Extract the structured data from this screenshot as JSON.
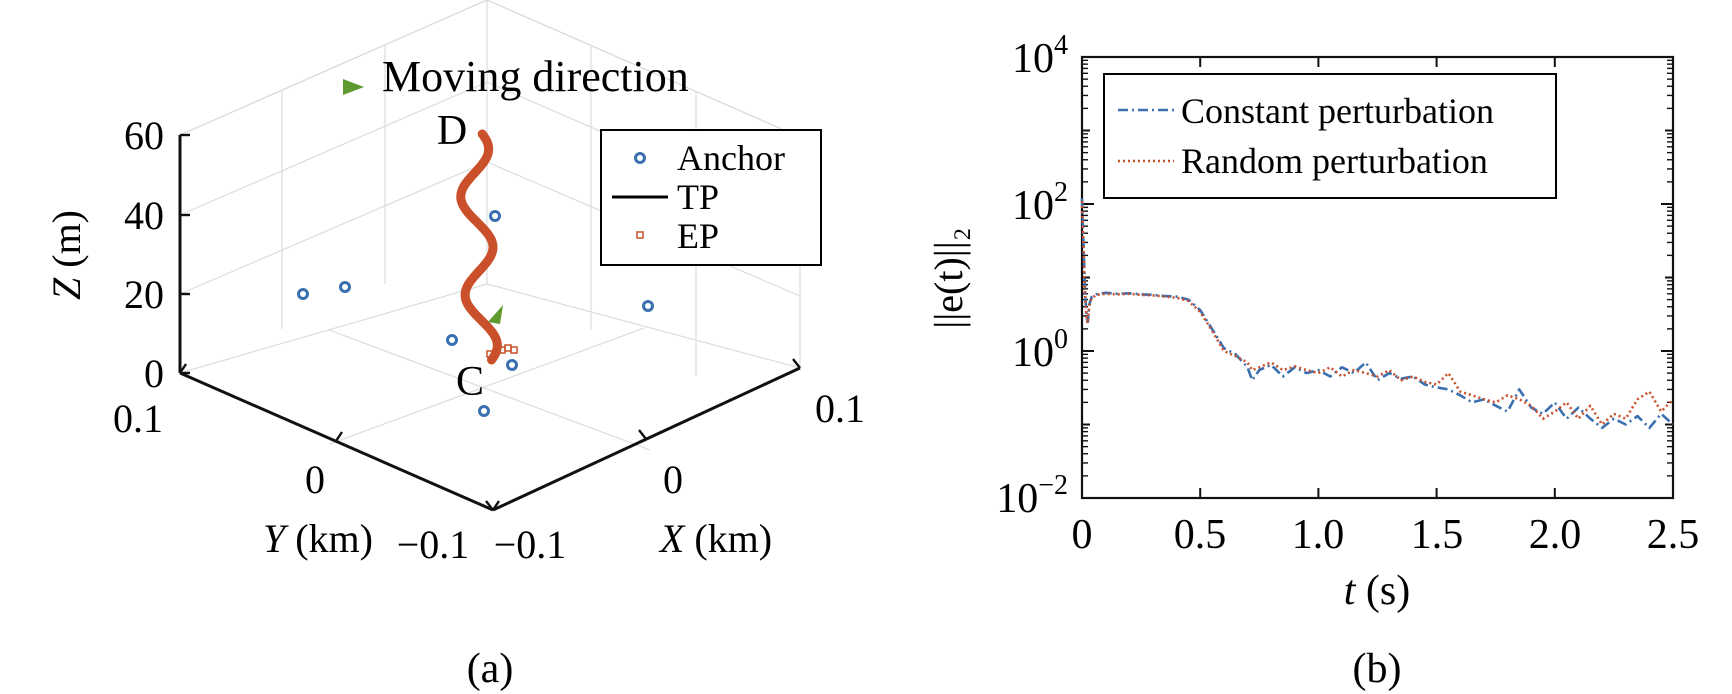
{
  "chart_data": [
    {
      "panel": "(a)",
      "type": "scatter",
      "view": "3d",
      "xlabel": {
        "var": "X",
        "unit": "(km)"
      },
      "ylabel": {
        "var": "Y",
        "unit": "(km)"
      },
      "zlabel": {
        "var": "Z",
        "unit": "(m)"
      },
      "x_ticks": [
        "−0.1",
        "0",
        "0.1"
      ],
      "y_ticks": [
        "0.1",
        "0",
        "−0.1"
      ],
      "z_ticks": [
        "0",
        "20",
        "40",
        "60"
      ],
      "xlim": [
        -0.1,
        0.1
      ],
      "ylim": [
        -0.1,
        0.1
      ],
      "zlim": [
        0,
        60
      ],
      "grid": true,
      "annotations": {
        "moving_direction": "Moving direction",
        "start_label": "C",
        "end_label": "D"
      },
      "legend": {
        "position": "top-right",
        "entries": [
          {
            "label": "Anchor",
            "marker": "circle",
            "color": "#3a6fb0"
          },
          {
            "label": "TP",
            "marker": "line",
            "color": "#000000"
          },
          {
            "label": "EP",
            "marker": "square",
            "color": "#c9502a"
          }
        ]
      },
      "anchors": [
        {
          "x": -0.08,
          "y": 0.03,
          "z": 0
        },
        {
          "x": -0.07,
          "y": 0.0,
          "z": 5
        },
        {
          "x": 0.01,
          "y": 0.05,
          "z": 40
        },
        {
          "x": 0.08,
          "y": -0.06,
          "z": 18
        },
        {
          "x": 0.0,
          "y": 0.02,
          "z": 0
        },
        {
          "x": 0.03,
          "y": -0.02,
          "z": 0
        },
        {
          "x": 0.02,
          "y": 0.05,
          "z": -10
        }
      ],
      "trajectory": {
        "start": {
          "x": 0,
          "y": 0,
          "z": 0
        },
        "end": {
          "x": 0,
          "y": 0,
          "z": 60
        },
        "amplitude_km": 0.006,
        "turns": 2.3
      },
      "trajectory_color": "#c9502a",
      "arrow_color": "#5e9a2d"
    },
    {
      "panel": "(b)",
      "type": "line",
      "xlabel": {
        "var": "t",
        "unit": "(s)"
      },
      "ylabel": "||e(t)||₂",
      "yscale": "log",
      "xlim": [
        0,
        2.5
      ],
      "ylim": [
        0.01,
        10000
      ],
      "x_ticks": [
        "0",
        "0.5",
        "1.0",
        "1.5",
        "2.0",
        "2.5"
      ],
      "y_ticks": [
        {
          "base": "10",
          "exp": "−2"
        },
        {
          "base": "10",
          "exp": "0"
        },
        {
          "base": "10",
          "exp": "2"
        },
        {
          "base": "10",
          "exp": "4"
        }
      ],
      "legend_position": "top-left",
      "series": [
        {
          "name": "Constant perturbation",
          "color": "#3a6fb0",
          "dash": "dashdot",
          "x": [
            0,
            0.005,
            0.01,
            0.015,
            0.02,
            0.025,
            0.03,
            0.04,
            0.06,
            0.1,
            0.15,
            0.2,
            0.25,
            0.3,
            0.35,
            0.4,
            0.45,
            0.5,
            0.55,
            0.6,
            0.65,
            0.7,
            0.72,
            0.75,
            0.8,
            0.85,
            0.9,
            0.95,
            1.0,
            1.05,
            1.1,
            1.15,
            1.2,
            1.25,
            1.3,
            1.35,
            1.4,
            1.45,
            1.5,
            1.55,
            1.6,
            1.65,
            1.7,
            1.75,
            1.8,
            1.85,
            1.9,
            1.95,
            2.0,
            2.05,
            2.1,
            2.15,
            2.2,
            2.25,
            2.3,
            2.35,
            2.4,
            2.45,
            2.5
          ],
          "y": [
            120,
            40,
            12,
            5,
            2.8,
            2.5,
            4.2,
            5.4,
            5.9,
            6.2,
            6.0,
            6.1,
            5.9,
            5.8,
            5.6,
            5.5,
            5.0,
            3.6,
            2.0,
            1.1,
            0.9,
            0.6,
            0.4,
            0.55,
            0.65,
            0.45,
            0.6,
            0.5,
            0.55,
            0.45,
            0.6,
            0.5,
            0.7,
            0.4,
            0.5,
            0.42,
            0.45,
            0.35,
            0.32,
            0.3,
            0.25,
            0.2,
            0.22,
            0.18,
            0.15,
            0.3,
            0.17,
            0.14,
            0.2,
            0.12,
            0.17,
            0.12,
            0.09,
            0.12,
            0.1,
            0.13,
            0.09,
            0.14,
            0.1
          ]
        },
        {
          "name": "Random perturbation",
          "color": "#c9502a",
          "dash": "dotted",
          "x": [
            0,
            0.005,
            0.01,
            0.015,
            0.02,
            0.025,
            0.03,
            0.04,
            0.06,
            0.1,
            0.15,
            0.2,
            0.25,
            0.3,
            0.35,
            0.4,
            0.45,
            0.5,
            0.55,
            0.6,
            0.65,
            0.7,
            0.72,
            0.75,
            0.8,
            0.85,
            0.9,
            0.95,
            1.0,
            1.05,
            1.1,
            1.15,
            1.2,
            1.25,
            1.3,
            1.35,
            1.4,
            1.45,
            1.5,
            1.55,
            1.6,
            1.65,
            1.7,
            1.75,
            1.8,
            1.85,
            1.9,
            1.95,
            2.0,
            2.05,
            2.1,
            2.15,
            2.2,
            2.25,
            2.3,
            2.35,
            2.4,
            2.45,
            2.5
          ],
          "y": [
            110,
            35,
            10,
            4.5,
            2.6,
            2.4,
            4.0,
            5.2,
            5.8,
            6.0,
            5.9,
            6.0,
            5.8,
            5.7,
            5.5,
            5.3,
            4.8,
            3.4,
            1.9,
            1.0,
            0.85,
            0.7,
            0.55,
            0.6,
            0.7,
            0.55,
            0.62,
            0.55,
            0.5,
            0.6,
            0.45,
            0.55,
            0.5,
            0.45,
            0.55,
            0.4,
            0.45,
            0.38,
            0.35,
            0.5,
            0.28,
            0.25,
            0.22,
            0.2,
            0.25,
            0.22,
            0.18,
            0.12,
            0.15,
            0.2,
            0.12,
            0.18,
            0.1,
            0.14,
            0.12,
            0.22,
            0.28,
            0.15,
            0.22
          ]
        }
      ]
    }
  ]
}
